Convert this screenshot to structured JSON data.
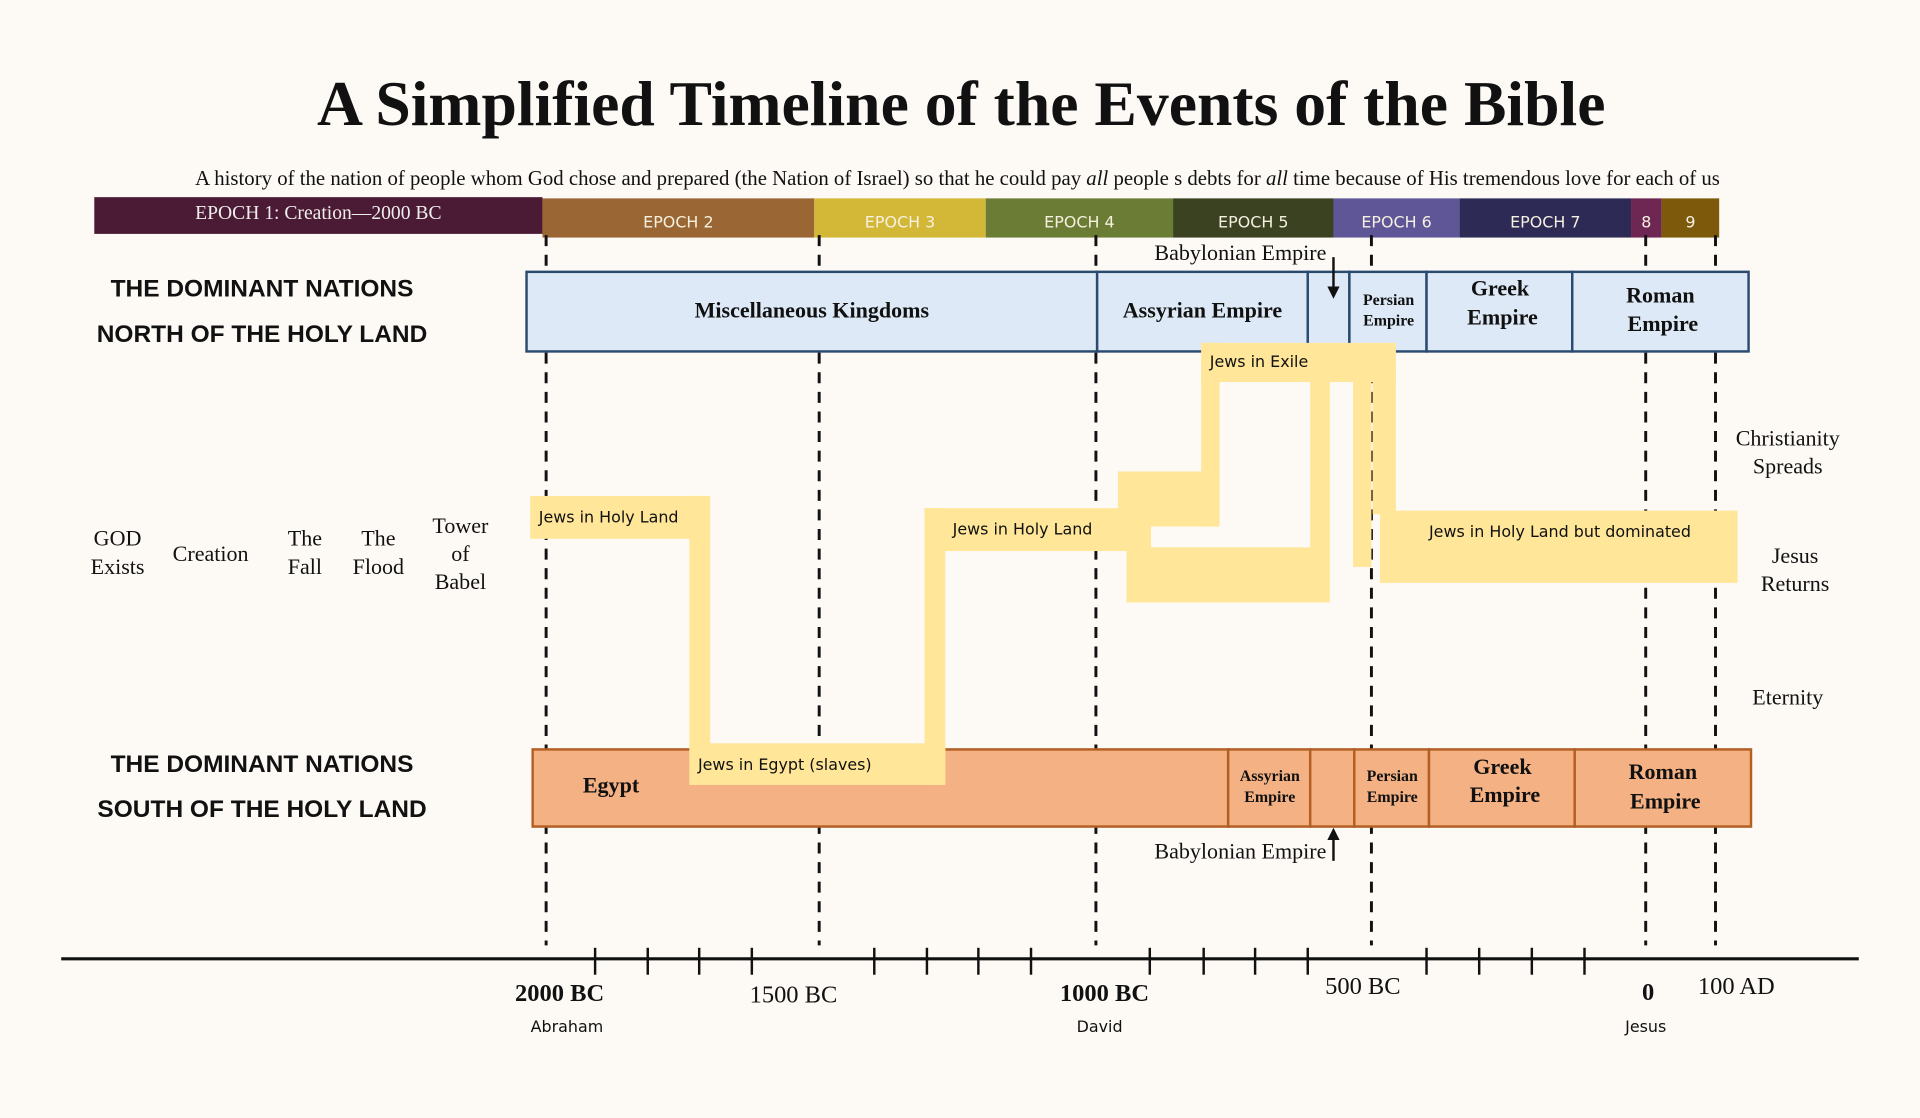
{
  "header": {
    "title": "A Simplified Timeline of the Events of the Bible",
    "subtitle": [
      "A history of the nation of people whom God chose and prepared (the Nation of Israel) so that he could pay ",
      "all",
      " people s debts for ",
      "all",
      " time because of His tremendous love for each of us"
    ]
  },
  "epochs": [
    {
      "label": "EPOCH 1: Creation—2000 BC",
      "color": "#4b1a34"
    },
    {
      "label": "EPOCH 2",
      "color": "#9a6633"
    },
    {
      "label": "EPOCH 3",
      "color": "#d3b837"
    },
    {
      "label": "EPOCH 4",
      "color": "#6b7c34"
    },
    {
      "label": "EPOCH 5",
      "color": "#3a4222"
    },
    {
      "label": "EPOCH 6",
      "color": "#5f5698"
    },
    {
      "label": "EPOCH 7",
      "color": "#2d2a56"
    },
    {
      "label": "8",
      "color": "#6e2752"
    },
    {
      "label": "9",
      "color": "#7d5a0b"
    }
  ],
  "north": {
    "heading": [
      "THE DOMINANT NATIONS",
      "NORTH OF THE HOLY LAND"
    ],
    "empires": [
      [
        "Miscellaneous Kingdoms"
      ],
      [
        "Assyrian Empire"
      ],
      [
        "Persian",
        "Empire"
      ],
      [
        "Greek",
        "Empire"
      ],
      [
        "Roman",
        "Empire"
      ]
    ],
    "annotation": "Babylonian Empire"
  },
  "south": {
    "heading": [
      "THE DOMINANT NATIONS",
      "SOUTH OF THE HOLY LAND"
    ],
    "empires": [
      [
        "Egypt"
      ],
      [
        "Assyrian",
        "Empire"
      ],
      [
        "Persian",
        "Empire"
      ],
      [
        "Greek",
        "Empire"
      ],
      [
        "Roman",
        "Empire"
      ]
    ],
    "annotation": "Babylonian Empire"
  },
  "events_before": [
    [
      "GOD",
      "Exists"
    ],
    [
      "Creation"
    ],
    [
      "The",
      "Fall"
    ],
    [
      "The",
      "Flood"
    ],
    [
      "Tower",
      "of",
      "Babel"
    ]
  ],
  "events_after": [
    [
      "Christianity",
      "Spreads"
    ],
    [
      "Jesus",
      "Returns"
    ],
    [
      "Eternity"
    ]
  ],
  "jews": [
    "Jews in Holy Land",
    "Jews in Egypt (slaves)",
    "Jews in Holy Land",
    "Jews in Exile",
    "Jews in Holy Land but dominated"
  ],
  "axis": [
    {
      "label": "2000 BC",
      "note": "Abraham"
    },
    {
      "label": "1500 BC"
    },
    {
      "label": "1000 BC",
      "note": "David"
    },
    {
      "label": "500 BC"
    },
    {
      "label": "0",
      "note": "Jesus"
    },
    {
      "label": "100 AD"
    }
  ]
}
